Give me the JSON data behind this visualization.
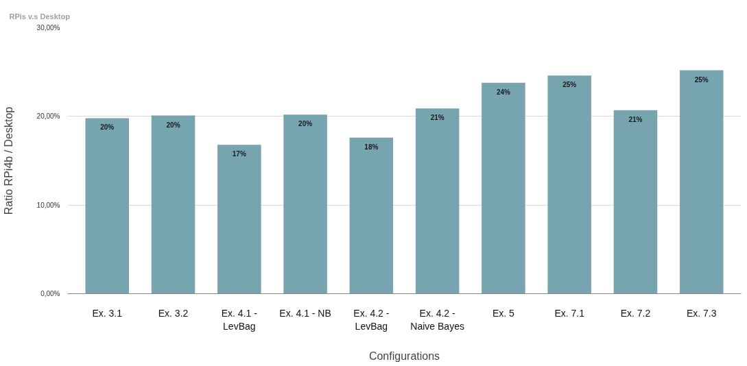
{
  "chart_data": {
    "type": "bar",
    "title": "RPis v.s Desktop",
    "xlabel": "Configurations",
    "ylabel": "Ratio RPi4b / Desktop",
    "categories": [
      "Ex. 3.1",
      "Ex. 3.2",
      "Ex. 4.1 - LevBag",
      "Ex. 4.1 - NB",
      "Ex. 4.2 - LevBag",
      "Ex. 4.2 - Naive Bayes",
      "Ex. 5",
      "Ex. 7.1",
      "Ex. 7.2",
      "Ex. 7.3"
    ],
    "values": [
      19.8,
      20.1,
      16.8,
      20.2,
      17.6,
      20.9,
      23.8,
      24.6,
      20.7,
      25.2
    ],
    "value_labels": [
      "20%",
      "20%",
      "17%",
      "20%",
      "18%",
      "21%",
      "24%",
      "25%",
      "21%",
      "25%"
    ],
    "color": "#76a5af",
    "ylim": [
      0,
      30
    ],
    "yticks": [
      {
        "value": 0,
        "label": "0,00%"
      },
      {
        "value": 10,
        "label": "10,00%"
      },
      {
        "value": 20,
        "label": "20,00%"
      },
      {
        "value": 30,
        "label": "30,00%"
      }
    ],
    "grid": "y"
  }
}
